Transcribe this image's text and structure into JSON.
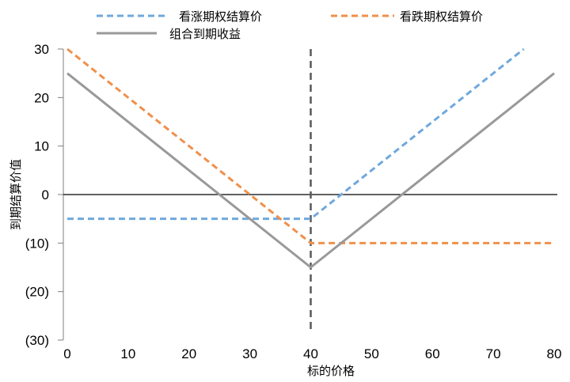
{
  "chart_data": {
    "type": "line",
    "xlabel": "标的价格",
    "ylabel": "到期结算价值",
    "xlim": [
      0,
      80
    ],
    "ylim": [
      -30,
      30
    ],
    "x_ticks": [
      "0",
      "10",
      "20",
      "30",
      "40",
      "50",
      "60",
      "70",
      "80"
    ],
    "y_ticks": [
      "30",
      "20",
      "10",
      "0",
      "(10)",
      "(20)",
      "(30)"
    ],
    "y_tick_values": [
      30,
      20,
      10,
      0,
      -10,
      -20,
      -30
    ],
    "grid": false,
    "legend_position": "top",
    "vline": {
      "x": 40,
      "style": "dashed",
      "color": "#595959"
    },
    "series": [
      {
        "name": "看涨期权结算价",
        "color": "#6fa8dc",
        "dash": true,
        "x": [
          0,
          40,
          75
        ],
        "y": [
          -5,
          -5,
          30
        ]
      },
      {
        "name": "看跌期权结算价",
        "color": "#f0904a",
        "dash": true,
        "x": [
          0,
          40,
          80
        ],
        "y": [
          30,
          -10,
          -10
        ]
      },
      {
        "name": "组合到期收益",
        "color": "#999999",
        "dash": false,
        "x": [
          0,
          40,
          80
        ],
        "y": [
          25,
          -15,
          25
        ]
      }
    ]
  }
}
